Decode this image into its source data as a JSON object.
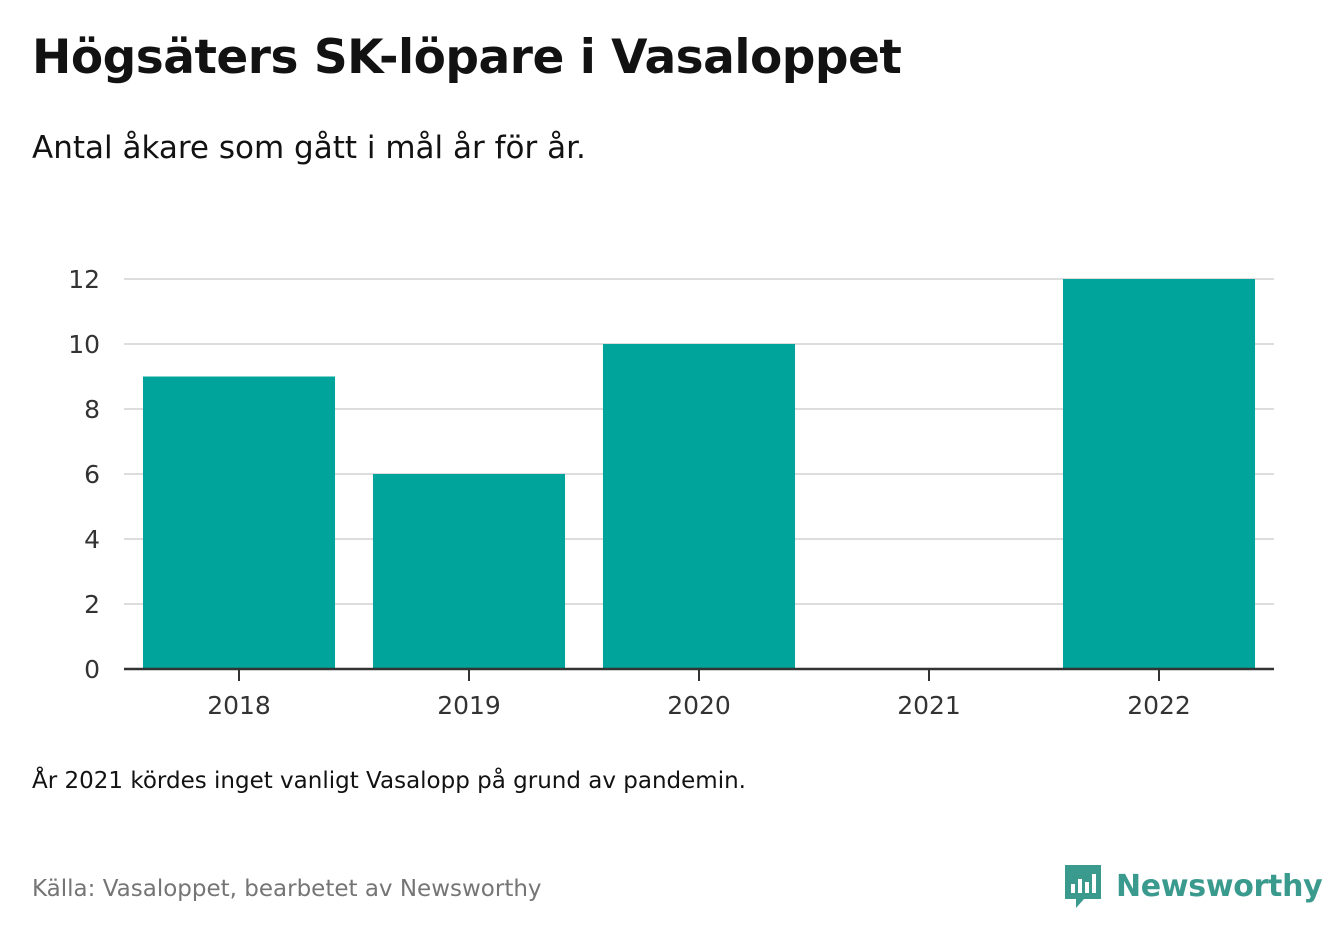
{
  "title": "Högsäters SK-löpare i Vasaloppet",
  "subtitle": "Antal åkare som gått i mål år för år.",
  "note": "År 2021 kördes inget vanligt Vasalopp på grund av pandemin.",
  "source": "Källa: Vasaloppet, bearbetet av Newsworthy",
  "brand": {
    "name": "Newsworthy",
    "icon": "newsworthy-logo-icon",
    "color": "#3a9a8e"
  },
  "colors": {
    "bar": "#00a49a",
    "grid": "#dddddd",
    "axis": "#333333",
    "text": "#121212"
  },
  "chart_data": {
    "type": "bar",
    "categories": [
      "2018",
      "2019",
      "2020",
      "2021",
      "2022"
    ],
    "values": [
      9,
      6,
      10,
      0,
      12
    ],
    "ylim": [
      0,
      12
    ],
    "yticks": [
      0,
      2,
      4,
      6,
      8,
      10,
      12
    ],
    "grid": true,
    "legend": "none"
  }
}
